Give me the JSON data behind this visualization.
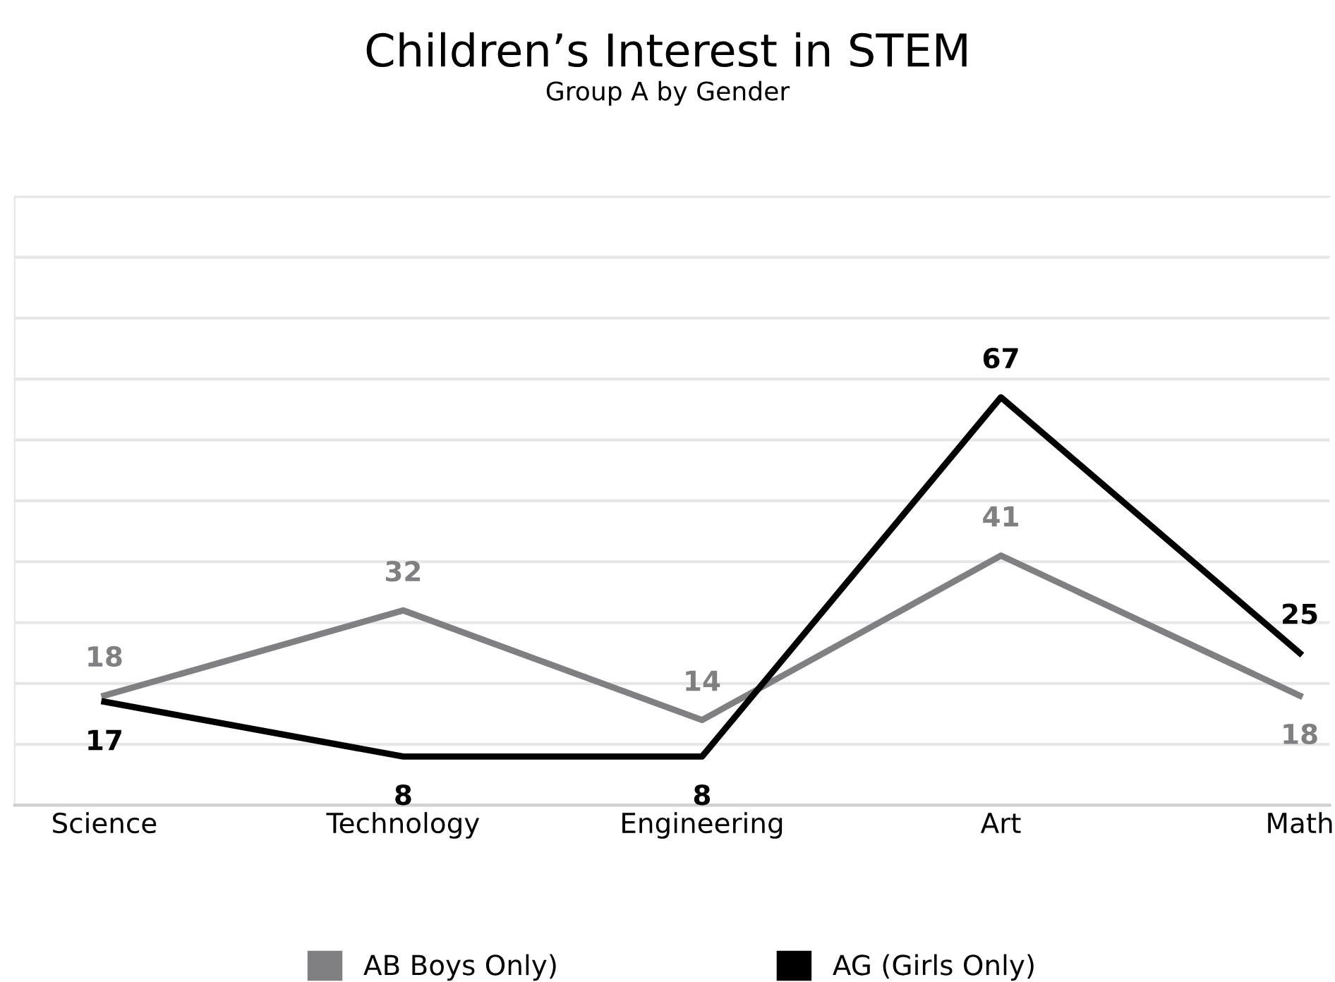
{
  "chart_data": {
    "type": "line",
    "title": "Children’s Interest in STEM",
    "subtitle": "Group A by Gender",
    "categories": [
      "Science",
      "Technology",
      "Engineering",
      "Art",
      "Math"
    ],
    "series": [
      {
        "name": "AB Boys Only)",
        "color": "#808083",
        "values": [
          18,
          32,
          14,
          41,
          18
        ]
      },
      {
        "name": "AG (Girls Only)",
        "color": "#000000",
        "values": [
          17,
          8,
          8,
          67,
          25
        ]
      }
    ],
    "ylim": [
      0,
      100
    ],
    "yticks": [
      {
        "value": 0,
        "label": null
      },
      {
        "value": 10,
        "label": null
      },
      {
        "value": 20,
        "label": null
      },
      {
        "value": 30,
        "label": null
      },
      {
        "value": 40,
        "label": null
      },
      {
        "value": 50,
        "label": null
      },
      {
        "value": 60,
        "label": null
      },
      {
        "value": 70,
        "label": null
      },
      {
        "value": 80,
        "label": null
      },
      {
        "value": 90,
        "label": null
      },
      {
        "value": 100,
        "label": null
      }
    ],
    "tick_labels": "x",
    "grid": "y",
    "legend": "bottom",
    "data_labels": true,
    "marker": "none",
    "line_style": "solid"
  }
}
